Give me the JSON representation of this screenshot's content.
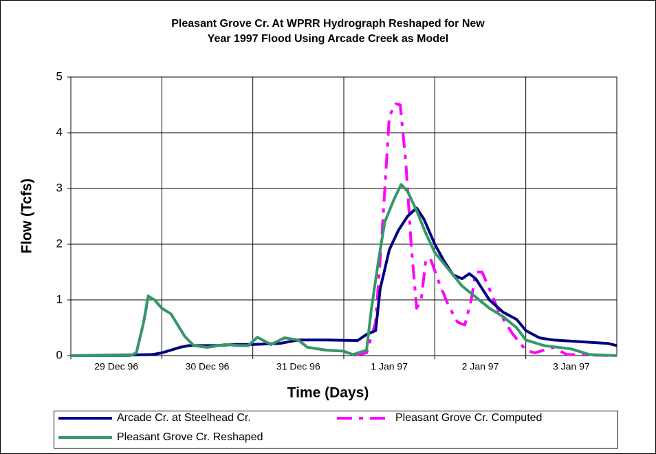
{
  "chart_data": {
    "type": "line",
    "title": [
      "Pleasant Grove Cr. At WPRR Hydrograph Reshaped for New",
      "Year 1997 Flood Using Arcade Creek as Model"
    ],
    "x_label": "Time (Days)",
    "y_label": "Flow (Tcfs)",
    "categories": [
      "29 Dec 96",
      "30 Dec 96",
      "31 Dec 96",
      "1 Jan 97",
      "2 Jan 97",
      "3 Jan 97"
    ],
    "xlim": [
      0,
      6
    ],
    "ylim": [
      0,
      5
    ],
    "yticks": [
      0,
      1,
      2,
      3,
      4,
      5
    ],
    "grid": true,
    "legend": "bottom",
    "series": [
      {
        "name": "Arcade Cr. at Steelhead Cr.",
        "color": "#000080",
        "dash": false,
        "x": [
          0,
          0.6,
          0.9,
          1.0,
          1.2,
          1.3,
          1.6,
          1.8,
          2.0,
          2.3,
          2.5,
          2.8,
          3.15,
          3.25,
          3.35,
          3.4,
          3.5,
          3.6,
          3.7,
          3.8,
          3.88,
          4.0,
          4.1,
          4.2,
          4.3,
          4.38,
          4.45,
          4.6,
          4.75,
          4.9,
          5.0,
          5.15,
          5.3,
          5.6,
          5.9,
          6.0
        ],
        "values": [
          0,
          0.01,
          0.02,
          0.05,
          0.15,
          0.18,
          0.18,
          0.2,
          0.2,
          0.22,
          0.28,
          0.28,
          0.27,
          0.38,
          0.45,
          1.2,
          1.9,
          2.25,
          2.5,
          2.65,
          2.45,
          2.0,
          1.7,
          1.45,
          1.38,
          1.47,
          1.38,
          1.0,
          0.78,
          0.65,
          0.45,
          0.32,
          0.28,
          0.25,
          0.22,
          0.18
        ]
      },
      {
        "name": "Pleasant Grove Cr. Computed",
        "color": "#ff00ff",
        "dash": true,
        "x": [
          0,
          0.65,
          0.72,
          0.8,
          0.85,
          0.92,
          1.0,
          1.1,
          1.25,
          1.35,
          1.5,
          1.7,
          1.85,
          1.95,
          2.05,
          2.2,
          2.35,
          2.5,
          2.6,
          2.8,
          3.0,
          3.1,
          3.25,
          3.35,
          3.42,
          3.5,
          3.57,
          3.62,
          3.68,
          3.74,
          3.8,
          3.85,
          3.9,
          3.95,
          4.05,
          4.15,
          4.25,
          4.33,
          4.4,
          4.45,
          4.52,
          4.6,
          4.7,
          4.85,
          5.0,
          5.1,
          5.3,
          5.45,
          6.0
        ],
        "values": [
          0,
          0,
          0.05,
          0.6,
          1.05,
          1.0,
          0.85,
          0.75,
          0.35,
          0.18,
          0.15,
          0.2,
          0.18,
          0.18,
          0.33,
          0.2,
          0.32,
          0.28,
          0.15,
          0.1,
          0.08,
          0,
          0.05,
          0.6,
          2.2,
          4.3,
          4.52,
          4.5,
          3.5,
          2.0,
          0.85,
          1.0,
          1.7,
          1.75,
          1.3,
          0.9,
          0.6,
          0.55,
          1.0,
          1.5,
          1.5,
          1.2,
          0.8,
          0.4,
          0.1,
          0.05,
          0.15,
          0.02,
          0
        ]
      },
      {
        "name": "Pleasant Grove Cr. Reshaped",
        "color": "#339966",
        "dash": false,
        "x": [
          0,
          0.65,
          0.72,
          0.8,
          0.85,
          0.92,
          1.0,
          1.1,
          1.25,
          1.35,
          1.5,
          1.7,
          1.85,
          1.95,
          2.05,
          2.2,
          2.35,
          2.5,
          2.6,
          2.8,
          3.0,
          3.1,
          3.25,
          3.3,
          3.38,
          3.45,
          3.55,
          3.63,
          3.7,
          3.8,
          3.9,
          4.0,
          4.1,
          4.2,
          4.3,
          4.45,
          4.6,
          4.75,
          4.9,
          5.0,
          5.2,
          5.5,
          5.7,
          6.0
        ],
        "values": [
          0,
          0,
          0.05,
          0.6,
          1.07,
          1.0,
          0.85,
          0.75,
          0.35,
          0.18,
          0.15,
          0.2,
          0.18,
          0.18,
          0.33,
          0.2,
          0.32,
          0.28,
          0.15,
          0.1,
          0.08,
          0.02,
          0.1,
          0.8,
          1.7,
          2.4,
          2.8,
          3.07,
          2.95,
          2.6,
          2.2,
          1.85,
          1.65,
          1.45,
          1.25,
          1.05,
          0.85,
          0.7,
          0.5,
          0.28,
          0.18,
          0.12,
          0.02,
          0
        ]
      }
    ]
  }
}
